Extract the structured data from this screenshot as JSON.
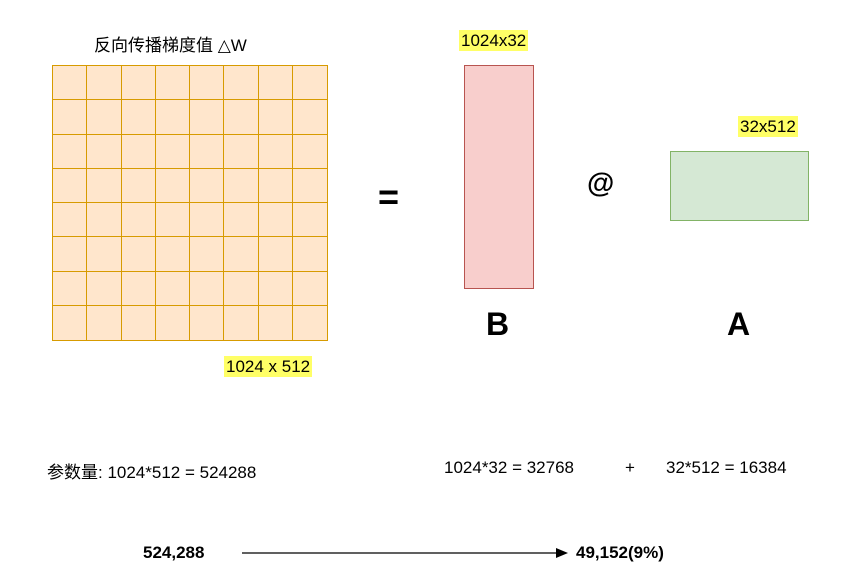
{
  "title": "反向传播梯度值 △W",
  "grid": {
    "rows": 8,
    "cols": 8
  },
  "labels": {
    "dw_dims": "1024 x 512",
    "b_dims": "1024x32",
    "a_dims": "32x512",
    "equals": "=",
    "matmul": "@",
    "b_letter": "B",
    "a_letter": "A"
  },
  "formulas": {
    "params_left": "参数量: 1024*512 = 524288",
    "b_params": "1024*32 = 32768",
    "plus": "+",
    "a_params": "32*512 = 16384"
  },
  "bottom": {
    "from": "524,288",
    "to": "49,152(9%)"
  },
  "colors": {
    "grid_fill": "#ffe6cc",
    "grid_stroke": "#d79b00",
    "b_fill": "#f8cecc",
    "b_stroke": "#b85450",
    "a_fill": "#d5e8d4",
    "a_stroke": "#82b366",
    "highlight": "#ffff66"
  }
}
